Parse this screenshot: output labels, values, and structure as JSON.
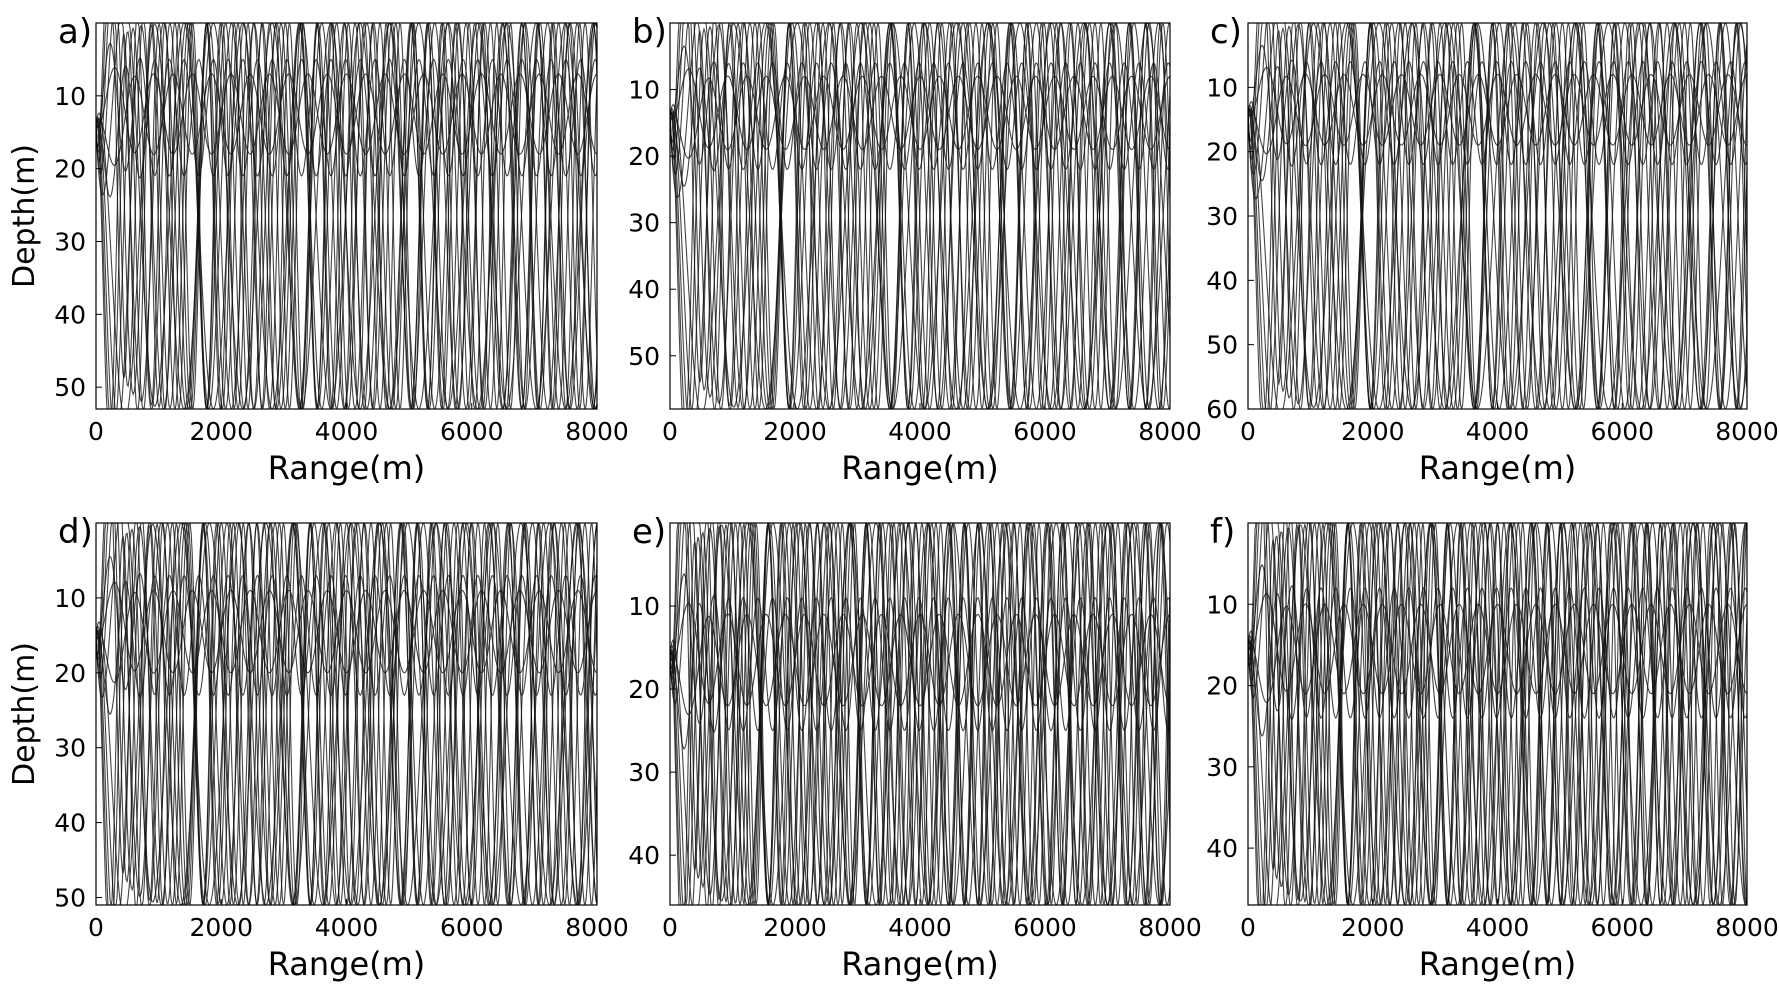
{
  "chart_data": [
    {
      "panel": "a)",
      "type": "line",
      "xlabel": "Range(m)",
      "ylabel": "Depth(m)",
      "xlim": [
        0,
        8000
      ],
      "ylim": [
        0,
        53
      ],
      "y_inverted": true,
      "xticks": [
        0,
        2000,
        4000,
        6000,
        8000
      ],
      "yticks": [
        10,
        20,
        30,
        40,
        50
      ],
      "x_tick_labels": [
        "0",
        "2000",
        "4000",
        "6000",
        "8000"
      ],
      "y_tick_labels": [
        "10",
        "20",
        "30",
        "40",
        "50"
      ],
      "rays": {
        "source_depth": 14,
        "sound_channel_depth": 13,
        "launch_angles_deg": [
          -14,
          -12,
          -10,
          -8,
          -6,
          -4,
          -2,
          2,
          4,
          6,
          8,
          10,
          12,
          14
        ],
        "max_range": 8000
      }
    },
    {
      "panel": "b)",
      "type": "line",
      "xlabel": "Range(m)",
      "ylabel": "",
      "xlim": [
        0,
        8000
      ],
      "ylim": [
        0,
        58
      ],
      "y_inverted": true,
      "xticks": [
        0,
        2000,
        4000,
        6000,
        8000
      ],
      "yticks": [
        10,
        20,
        30,
        40,
        50
      ],
      "x_tick_labels": [
        "0",
        "2000",
        "4000",
        "6000",
        "8000"
      ],
      "y_tick_labels": [
        "10",
        "20",
        "30",
        "40",
        "50"
      ],
      "rays": {
        "source_depth": 14,
        "sound_channel_depth": 14,
        "launch_angles_deg": [
          -14,
          -12,
          -10,
          -8,
          -6,
          -4,
          -2,
          2,
          4,
          6,
          8,
          10,
          12,
          14
        ],
        "max_range": 8000
      }
    },
    {
      "panel": "c)",
      "type": "line",
      "xlabel": "Range(m)",
      "ylabel": "",
      "xlim": [
        0,
        8000
      ],
      "ylim": [
        0,
        60
      ],
      "y_inverted": true,
      "xticks": [
        0,
        2000,
        4000,
        6000,
        8000
      ],
      "yticks": [
        10,
        20,
        30,
        40,
        50,
        60
      ],
      "x_tick_labels": [
        "0",
        "2000",
        "4000",
        "6000",
        "8000"
      ],
      "y_tick_labels": [
        "10",
        "20",
        "30",
        "40",
        "50",
        "60"
      ],
      "rays": {
        "source_depth": 14,
        "sound_channel_depth": 14,
        "launch_angles_deg": [
          -14,
          -12,
          -10,
          -8,
          -6,
          -4,
          -2,
          2,
          4,
          6,
          8,
          10,
          12,
          14
        ],
        "max_range": 8000
      }
    },
    {
      "panel": "d)",
      "type": "line",
      "xlabel": "Range(m)",
      "ylabel": "Depth(m)",
      "xlim": [
        0,
        8000
      ],
      "ylim": [
        0,
        51
      ],
      "y_inverted": true,
      "xticks": [
        0,
        2000,
        4000,
        6000,
        8000
      ],
      "yticks": [
        10,
        20,
        30,
        40,
        50
      ],
      "x_tick_labels": [
        "0",
        "2000",
        "4000",
        "6000",
        "8000"
      ],
      "y_tick_labels": [
        "10",
        "20",
        "30",
        "40",
        "50"
      ],
      "rays": {
        "source_depth": 15,
        "sound_channel_depth": 15,
        "launch_angles_deg": [
          -14,
          -12,
          -10,
          -8,
          -6,
          -4,
          -2,
          2,
          4,
          6,
          8,
          10,
          12,
          14
        ],
        "max_range": 8000
      }
    },
    {
      "panel": "e)",
      "type": "line",
      "xlabel": "Range(m)",
      "ylabel": "",
      "xlim": [
        0,
        8000
      ],
      "ylim": [
        0,
        46
      ],
      "y_inverted": true,
      "xticks": [
        0,
        2000,
        4000,
        6000,
        8000
      ],
      "yticks": [
        10,
        20,
        30,
        40
      ],
      "x_tick_labels": [
        "0",
        "2000",
        "4000",
        "6000",
        "8000"
      ],
      "y_tick_labels": [
        "10",
        "20",
        "30",
        "40"
      ],
      "rays": {
        "source_depth": 16,
        "sound_channel_depth": 17,
        "launch_angles_deg": [
          -14,
          -12,
          -10,
          -8,
          -6,
          -4,
          -2,
          2,
          4,
          6,
          8,
          10,
          12,
          14
        ],
        "max_range": 8000
      }
    },
    {
      "panel": "f)",
      "type": "line",
      "xlabel": "Range(m)",
      "ylabel": "",
      "xlim": [
        0,
        8000
      ],
      "ylim": [
        0,
        47
      ],
      "y_inverted": true,
      "xticks": [
        0,
        2000,
        4000,
        6000,
        8000
      ],
      "yticks": [
        10,
        20,
        30,
        40
      ],
      "x_tick_labels": [
        "0",
        "2000",
        "4000",
        "6000",
        "8000"
      ],
      "y_tick_labels": [
        "10",
        "20",
        "30",
        "40"
      ],
      "rays": {
        "source_depth": 15,
        "sound_channel_depth": 16,
        "launch_angles_deg": [
          -14,
          -12,
          -10,
          -8,
          -6,
          -4,
          -2,
          2,
          4,
          6,
          8,
          10,
          12,
          14
        ],
        "max_range": 8000
      }
    }
  ]
}
